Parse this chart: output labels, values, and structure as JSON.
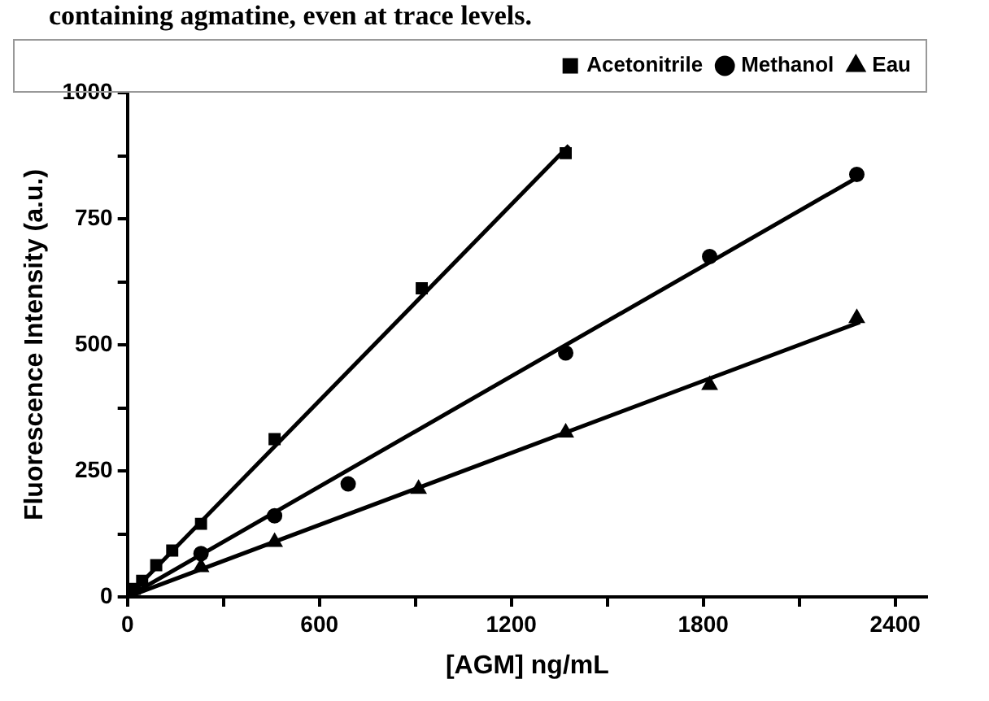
{
  "chart_data": {
    "type": "scatter",
    "xlabel": "[AGM] ng/mL",
    "ylabel": "Fluorescence Intensity (a.u.)",
    "annotations": [
      "containing agmatine, even at trace levels."
    ],
    "xlim": [
      0,
      2500
    ],
    "ylim": [
      0,
      1000
    ],
    "xticks": [
      0,
      {
        "value": 300,
        "label": null
      },
      600,
      {
        "value": 900,
        "label": null
      },
      1200,
      {
        "value": 1500,
        "label": null
      },
      1800,
      {
        "value": 2100,
        "label": null
      },
      2400
    ],
    "yticks": [
      0,
      {
        "value": 125,
        "label": null
      },
      250,
      {
        "value": 375,
        "label": null
      },
      500,
      {
        "value": 625,
        "label": null
      },
      750,
      {
        "value": 875,
        "label": null
      },
      1000
    ],
    "grid": false,
    "legend": "top right",
    "series": [
      {
        "name": "Acetonitrile",
        "type": "scatter",
        "marker": "square",
        "color": "#000000",
        "x": [
          23,
          46,
          90,
          140,
          230,
          460,
          920,
          1370
        ],
        "values": [
          16,
          32,
          63,
          92,
          145,
          313,
          612,
          880
        ]
      },
      {
        "name": "Methanol",
        "type": "scatter",
        "marker": "circle",
        "color": "#000000",
        "x": [
          230,
          460,
          690,
          1370,
          1820,
          2280
        ],
        "values": [
          86,
          161,
          224,
          484,
          675,
          838
        ]
      },
      {
        "name": "Eau",
        "type": "scatter",
        "marker": "triangle",
        "color": "#000000",
        "x": [
          230,
          460,
          910,
          1370,
          1820,
          2280
        ],
        "values": [
          59,
          109,
          214,
          326,
          420,
          553
        ]
      },
      {
        "type": "line",
        "marker": "none",
        "color": "#000000",
        "x": [
          0,
          1380
        ],
        "values": [
          0,
          895
        ]
      },
      {
        "type": "line",
        "marker": "none",
        "color": "#000000",
        "x": [
          0,
          2290
        ],
        "values": [
          0,
          835
        ]
      },
      {
        "type": "line",
        "marker": "none",
        "color": "#000000",
        "x": [
          0,
          2290
        ],
        "values": [
          0,
          545
        ]
      }
    ]
  }
}
